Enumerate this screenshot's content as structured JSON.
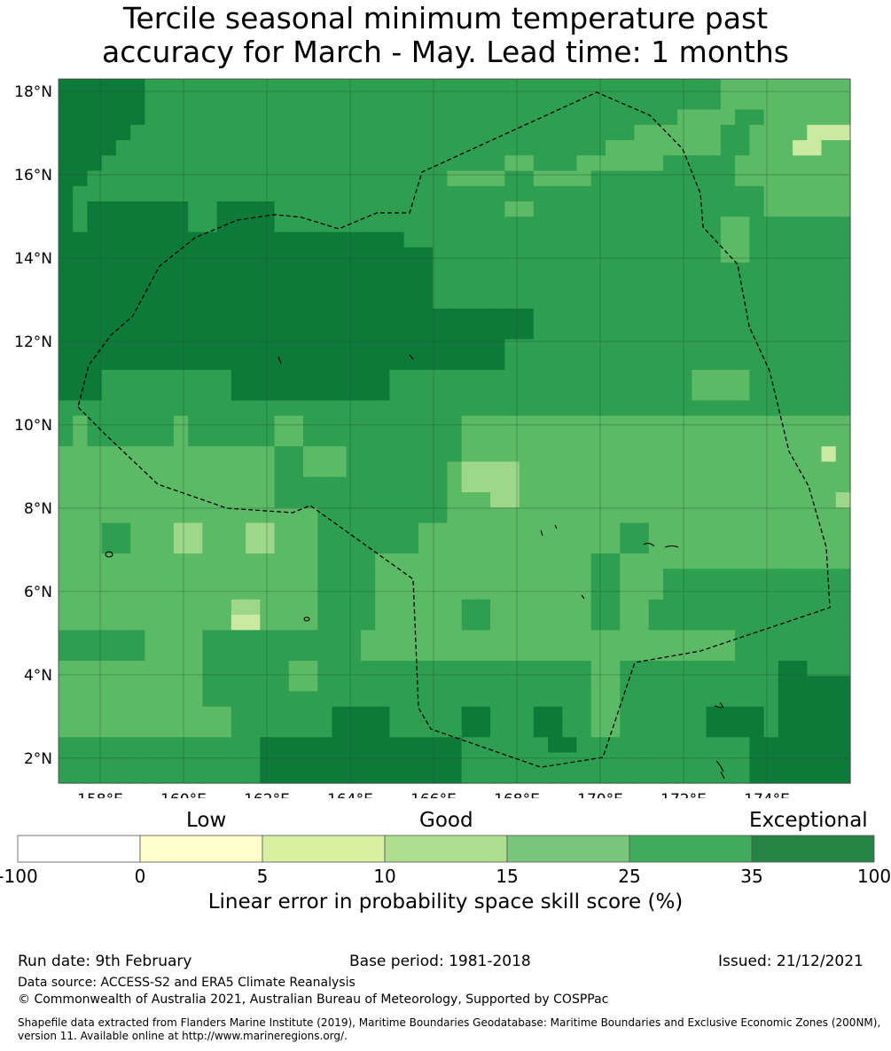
{
  "title": {
    "line1": "Tercile seasonal minimum temperature past",
    "line2": "accuracy for March - May. Lead time: 1 months"
  },
  "map": {
    "lat_labels": [
      "18°N",
      "16°N",
      "14°N",
      "12°N",
      "10°N",
      "8°N",
      "6°N",
      "4°N",
      "2°N"
    ],
    "lon_labels": [
      "158°E",
      "160°E",
      "162°E",
      "164°E",
      "166°E",
      "168°E",
      "170°E",
      "172°E",
      "174°E"
    ],
    "lat_values": [
      18,
      16,
      14,
      12,
      10,
      8,
      6,
      4,
      2
    ],
    "lon_values": [
      158,
      160,
      162,
      164,
      166,
      168,
      170,
      172,
      174
    ],
    "extent": {
      "lon_min": 157,
      "lon_max": 176,
      "lat_min": 1.4,
      "lat_max": 18.3
    },
    "color_classes": {
      "A": "#0e7a3a",
      "G": "#2e9e50",
      "M": "#5cba66",
      "L": "#9ed68a",
      "Y": "#cbe9a0"
    },
    "grid_rows": [
      "AAAAAAGGGGGGGGGGGGGGGGGGGGGGGGGGGGGGGGGGGGGGGGMMMMMMMMM",
      "AAAAAAGGGGGGGGGGGGGGGGGGGGGGGGGGGGGGGGGGGGGGGGMMMMMMMMM",
      "AAAAAAGGGGGGGGGGGGGGGGGGGGGGGGGGGGGGGGGGGGGMMMMGGMMMMMM",
      "AAAAAGGGGGGGGGGGGGGGGGGGGGGGGGGGGGGGGGGGMMMMMMGGMMMMYYY",
      "AAAAGGGGGGGGGGGGGGGGGGGGGGGGGGGGGGGGGGMMMMMMMMGGMMMYYMM",
      "AAAGGGGGGGGGGGGGGGGGGGGGGGGGGGGMMGGGMMMMMMGGGGGMMMMMMMM",
      "AAGGGGGGGGGGGGGGGGGGGGGGGGGMMMMGGMMMMGGGGGGGGGGMMMMMMMM",
      "AGGGGGGGGGGGGGGGGGGGGGGGGGGGGGGGGGGGGGGGGGGGGGGGGMMMMMM",
      "AGAAAAAAAGGAAAAGGGGGGGGGGGGGGGGMMGGGGGGGGGGGGGGGGMMMMMM",
      "AGAAAAAAAGGAAAAGGGGGGGGGGGGGGGGGGGGGGGGGGGGGGGMMGGGGGGG",
      "AAAAAAAAAAAAAAAAAAAAAAAAGGGGGGGGGGGGGGGGGGGGGGMMGGGGGGG",
      "AAAAAAAAAAAAAAAAAAAAAAAAAAGGGGGGGGGGGGGGGGGGGGMMGGGGGGG",
      "AAAAAAAAAAAAAAAAAAAAAAAAAAGGGGGGGGGGGGGGGGGGGGGGGGGGGGG",
      "AAAAAAAAAAAAAAAAAAAAAAAAAAGGGGGGGGGGGGGGGGGGGGGGGGGGGGG",
      "AAAAAAAAAAAAAAAAAAAAAAAAAAGGGGGGGGGGGGGGGGGGGGGGGGGGGGG",
      "AAAAAAAAAAAAAAAAAAAAAAAAAAAAAAAAAGGGGGGGGGGGGGGGGGGGGGG",
      "AAAAAAAAAAAAAAAAAAAAAAAAAAAAAAAAAGGGGGGGGGGGGGGGGGGGGGG",
      "AAAAAAAAAAAAAAAAAAAAAAAAAAAAAAAGGGGGGGGGGGGGGGGGGGGGGGG",
      "AAAAAAAAAAAAAAAAAAAAAAAAAAAAAAAGGGGGGGGGGGGGGGGGGGGGGGG",
      "AAAGGGGGGGGGAAAAAAAAAAAGGGGGGGGGGGGGGGGGGGGGMMMMGGGGGGG",
      "AAAGGGGGGGGGAAAAAAAAAAAGGGGGGGGGGGGGGGGGGGGGMMMMGGGGGGG",
      "GGGGGGGGGGGGGGGGGGGGGGGGGGGGGGGGGGGGGGGGGGGGGGGGGGGGGGG",
      "GMGGGGGGMGGGGGGMMGGGGGGGGGGGMMMMMMMMMMMMMMMMMMMMMMMMMMM",
      "GMGGGGGGMGGGGGGMMGGGGGGGGGGGMMMMMMMMMMMMMMMMMMMMMMMMMMM",
      "MMMMMMMMMMMMMMMGGMMMGGGGGGGGMMMMMMMMMMMMMMMMMMMMMMMMMYM",
      "MMMMMMMMMMMMMMMGGMMMGGGGGGGMLLLLMMMMMMMMMMMMMMMMMMMMMMM",
      "MMMMMMMMMMMMMMMGGGGGGGGGGGGMLLLLMMMMMMMMMMMMMMMMMMMMMMM",
      "MMMMMMMMMMMMMMMGGGGGGGGGGGGMMMLLMMMMMMMMMMMMMMMMMMMMMML",
      "MMMMMMMMMMMMMMMMMMGGGGGGGGGMMMMMMMMMMMMMMMMMMMMMMMMMMMM",
      "MMMGGMMMLLMMMLLMMMGGGGGGGMMMMMMMMMMMMMMGGMMMMMMMMMMMMMM",
      "MMMGGMMMLLMMMLLMMMGGGGGGGMMMMMMMMMMMMMMGGMMMMMMMMMMMMMM",
      "MMMMMMMMMMMMMMMMMMGGGGMMMMMMMMMMMMMMMGGMMMMMMMMMMMMMMMM",
      "MMMMMMMMMMMMMMMMMMGGGGMMMMMMMMMMMMMMMGGMMMGGGGGGGGGGGGG",
      "MMMMMMMMMMMMMMMMMMGGGGMMMMMMMMMMMMMMMGGMMMGGGGGGGGGGGGG",
      "MMMMMMMMMMMMLLMMMMGGGGMMMMMMGGMMMMMMMGGMMGGGGGGGGGGGGGG",
      "MMMMMMMMMMMMYYMMMMGGGGMMMMMMGGMMMMMMMGGMMGGGGGGGGGGGGGG",
      "GGGGGGMMMMGGGGGGGGGGGMMMMMMMMMMMMMMMMMMMMMMMMMMGGGGGGGG",
      "GGGGGGMMMMGGGGGGGGGGGMMMMMMMMMMMMMMMMMMMMMMMMMMGGGGGGGG",
      "MMMMMMMMMMGGGGGGMMGGGGGGGGGGGGGGGGGGGMMGGGGGGGGGGGAAGGG",
      "MMMMMMMMMMGGGGGGMMGGGGGGGGGGGGGGGGGGGMMGGGGGGGGGGGAAAAA",
      "MMMMMMMMMMGGGGGGGGGGGGGGGGGGGGGGGGGGGMMGGGGGGGGGGGAAAAA",
      "MMMMMMMMMMMMGGGGGGGAAAAGGGGGAAGGGAAGGMMGGGGGGAAAAGAAAAA",
      "MMMMMMMMMMMMGGGGGGGAAAAGGGGGAAGGGAAGGMMGGGGGGAAAAGAAAAA",
      "GGGGGGGGGGGGGGAAAAAAAAAAAAAAGGGGGGAAGGGGGGGGGGGGAAAAAAA",
      "GGGGGGGGGGGGGGAAAAAAAAAAAAAAGGGGGGGGGGGGGGGGGGGGAAAAAAA",
      "GGGGGGGGGGGGGGAAAAAAAAAAAAAAGGGGGGGGGGGGGGGGGGGGAAAAAAA"
    ]
  },
  "colorbar": {
    "labels": {
      "low": "Low",
      "good": "Good",
      "exceptional": "Exceptional"
    },
    "segments": [
      {
        "color": "#ffffff"
      },
      {
        "color": "#ffffcc"
      },
      {
        "color": "#d9f0a3"
      },
      {
        "color": "#addd8e"
      },
      {
        "color": "#78c679"
      },
      {
        "color": "#41ab5d"
      },
      {
        "color": "#238443"
      }
    ],
    "ticks": [
      "-100",
      "0",
      "5",
      "10",
      "15",
      "25",
      "35",
      "100"
    ],
    "title": "Linear error in probability space skill score (%)"
  },
  "footer": {
    "run_date": "Run date: 9th February",
    "base_period": "Base period: 1981-2018",
    "issued": "Issued: 21/12/2021",
    "data_source": "Data source: ACCESS-S2 and ERA5 Climate Reanalysis",
    "copyright": "© Commonwealth of Australia 2021, Australian Bureau of Meteorology, Supported by COSPPac",
    "shapefile_line1": "Shapefile data extracted from Flanders Marine Institute (2019), Maritime Boundaries Geodatabase: Maritime Boundaries and Exclusive Economic Zones (200NM),",
    "shapefile_line2": "version 11. Available online at http://www.marineregions.org/."
  }
}
